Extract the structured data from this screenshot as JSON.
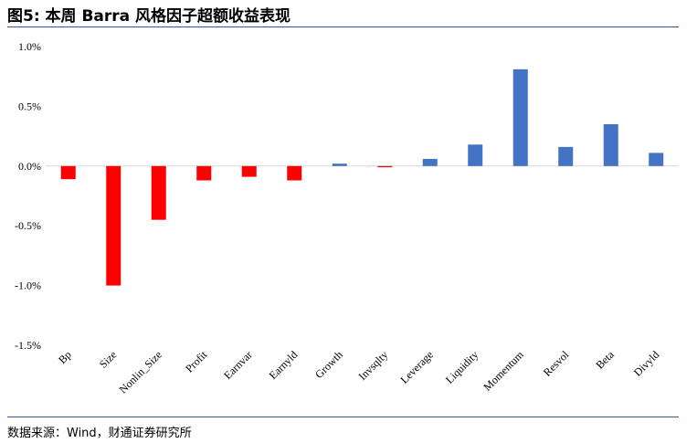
{
  "figure": {
    "title": "图5: 本周 Barra 风格因子超额收益表现",
    "source": "数据来源：Wind，财通证券研究所"
  },
  "chart_data": {
    "type": "bar",
    "title": "",
    "xlabel": "",
    "ylabel": "",
    "categories": [
      "Bp",
      "Size",
      "Nonlin_Size",
      "Profit",
      "Earnvar",
      "Earnyld",
      "Growth",
      "Invsqlty",
      "Leverage",
      "Liquidity",
      "Momentum",
      "Resvol",
      "Beta",
      "Divyld"
    ],
    "values": [
      -0.11,
      -1.0,
      -0.45,
      -0.12,
      -0.09,
      -0.12,
      0.02,
      -0.01,
      0.06,
      0.18,
      0.81,
      0.16,
      0.35,
      0.11
    ],
    "ylim": [
      -1.5,
      1.0
    ],
    "y_ticks": [
      1.0,
      0.5,
      0.0,
      -0.5,
      -1.0,
      -1.5
    ],
    "y_tick_labels": [
      "1.0%",
      "0.5%",
      "0.0%",
      "-0.5%",
      "-1.0%",
      "-1.5%"
    ],
    "negative_color": "#ff0000",
    "positive_color": "#4472c4",
    "grid": false,
    "legend": "none"
  }
}
